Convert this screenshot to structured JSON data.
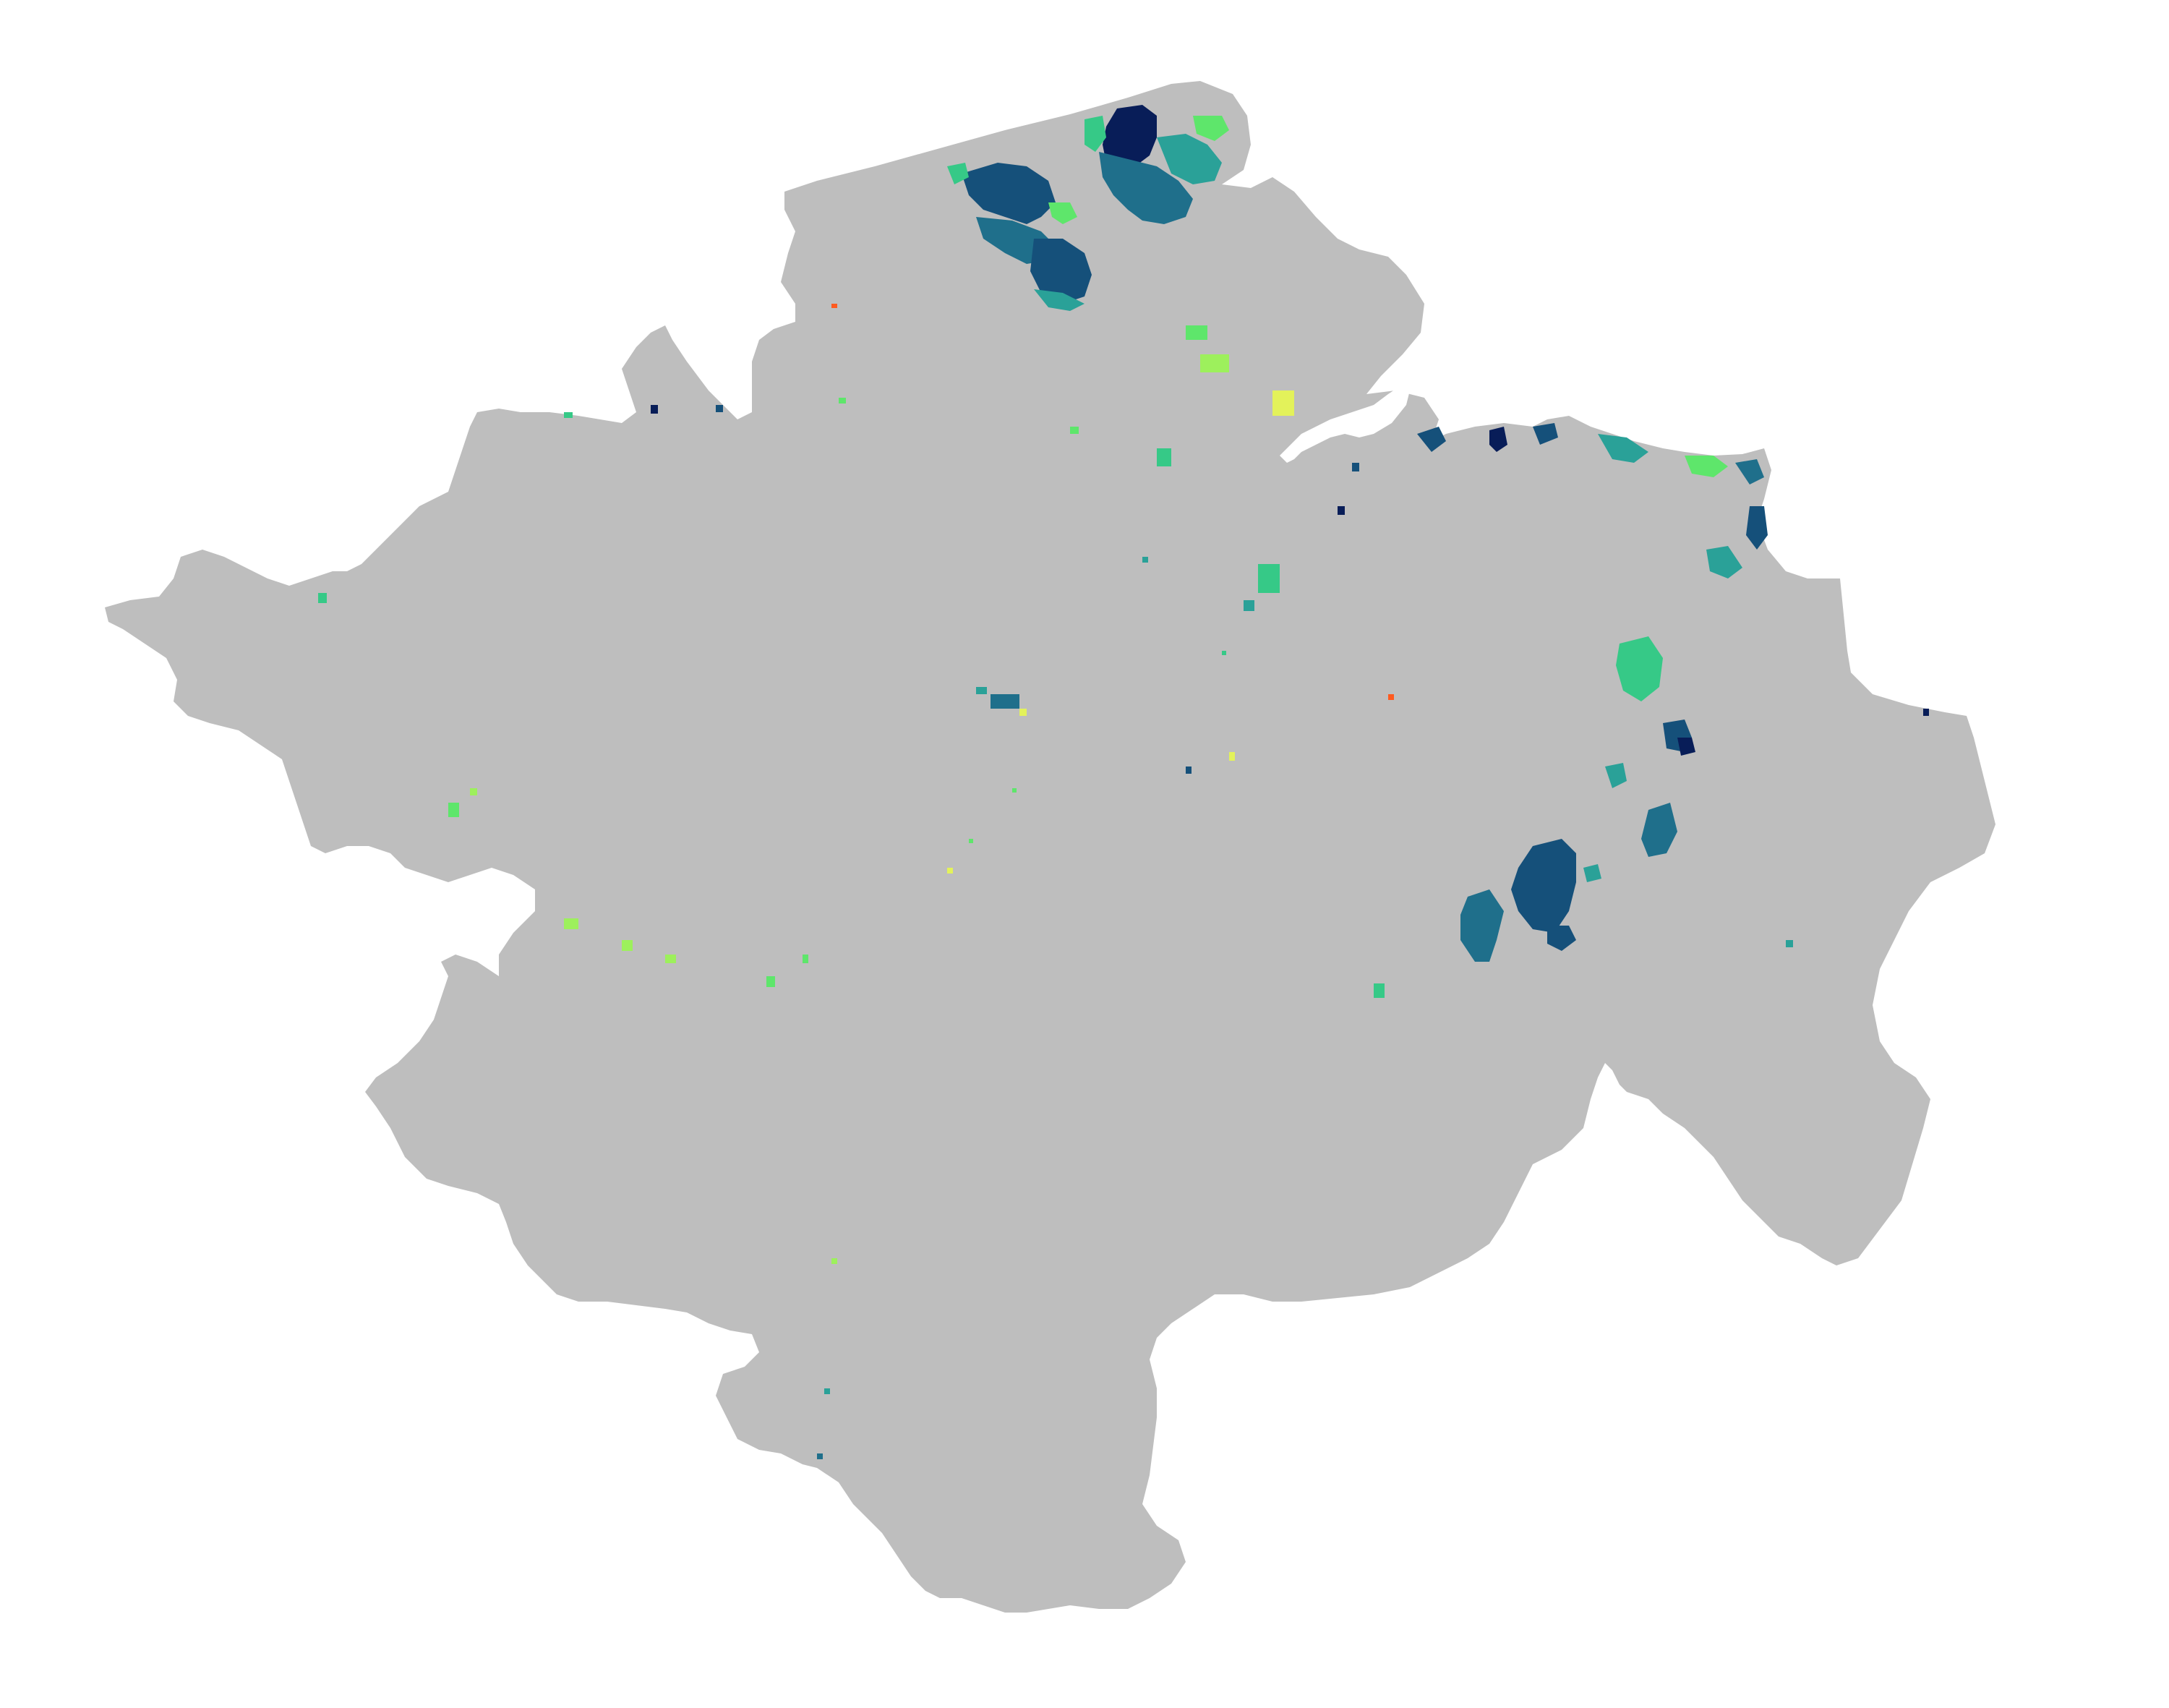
{
  "map": {
    "type": "raster-choropleth",
    "legend": null,
    "title": "",
    "colors": {
      "background": "#ffffff",
      "land": "#bebebe",
      "estuary": "#ffffff",
      "palette": [
        "#081d58",
        "#0c3a7a",
        "#15507a",
        "#1f6f8b",
        "#2aa198",
        "#36c987",
        "#5ee66b",
        "#9df05c",
        "#e3f25a",
        "#ff5a1f"
      ]
    }
  }
}
